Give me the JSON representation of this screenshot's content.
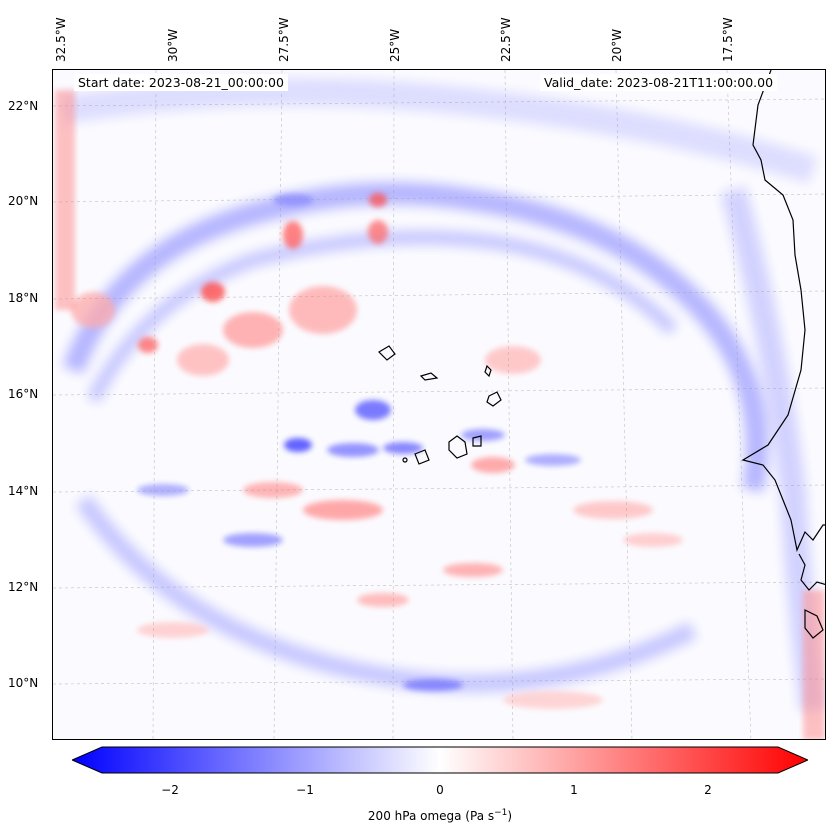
{
  "map": {
    "start_date": "Start date: 2023-08-21_00:00:00",
    "valid_date": "Valid_date: 2023-08-21T11:00:00.00",
    "lon_labels": [
      "32.5°W",
      "30°W",
      "27.5°W",
      "25°W",
      "22.5°W",
      "20°W",
      "17.5°W"
    ],
    "lat_labels": [
      "22°N",
      "20°N",
      "18°N",
      "16°N",
      "14°N",
      "12°N",
      "10°N"
    ],
    "field_name": "200 hPa omega",
    "colormap": "bwr",
    "negative_color": "#0000ff",
    "positive_color": "#ff0000",
    "neutral_color": "#ffffff",
    "coastline_color": "#000000"
  },
  "colorbar": {
    "ticks": [
      "−2",
      "−1",
      "0",
      "1",
      "2"
    ],
    "label_prefix": "200 hPa omega (Pa s",
    "label_exp": "−1",
    "label_suffix": ")",
    "range": [
      -2.7,
      2.7
    ]
  }
}
